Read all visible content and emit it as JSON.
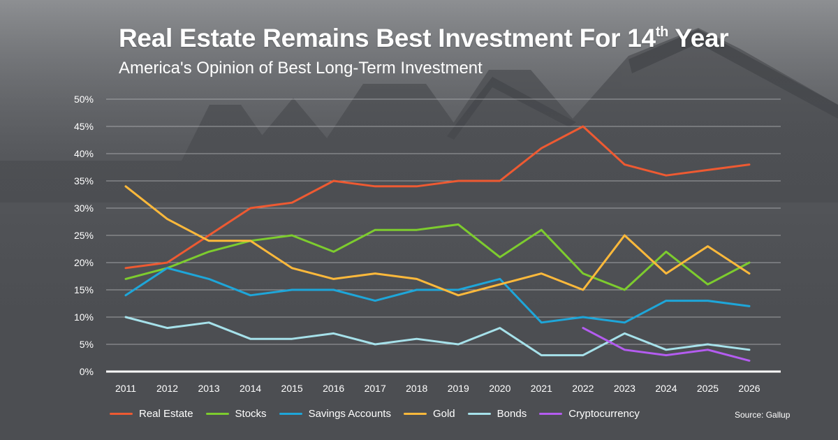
{
  "header": {
    "title_main": "Real Estate Remains Best Investment For 14",
    "title_sup": "th",
    "title_end": " Year",
    "subtitle": "America's Opinion of Best Long-Term Investment"
  },
  "source": "Source: Gallup",
  "chart_data": {
    "type": "line",
    "title": "Real Estate Remains Best Investment For 14th Year",
    "subtitle": "America's Opinion of Best Long-Term Investment",
    "x": [
      "2011",
      "2012",
      "2013",
      "2014",
      "2015",
      "2016",
      "2017",
      "2018",
      "2019",
      "2020",
      "2021",
      "2022",
      "2023",
      "2024",
      "2025",
      "2026"
    ],
    "ylim": [
      0,
      50
    ],
    "y_ticks": [
      "0%",
      "5%",
      "10%",
      "15%",
      "20%",
      "25%",
      "30%",
      "35%",
      "40%",
      "45%",
      "50%"
    ],
    "grid": "horizontal",
    "legend_position": "bottom",
    "series": [
      {
        "name": "Real Estate",
        "color": "#ee5a32",
        "values": [
          19,
          20,
          25,
          30,
          31,
          35,
          34,
          34,
          35,
          35,
          41,
          45,
          38,
          36,
          37,
          38
        ]
      },
      {
        "name": "Stocks",
        "color": "#7dcc2e",
        "values": [
          17,
          19,
          22,
          24,
          25,
          22,
          26,
          26,
          27,
          21,
          26,
          18,
          15,
          22,
          16,
          20
        ]
      },
      {
        "name": "Savings Accounts",
        "color": "#1ea6d9",
        "values": [
          14,
          19,
          17,
          14,
          15,
          15,
          13,
          15,
          15,
          17,
          9,
          10,
          9,
          13,
          13,
          12
        ]
      },
      {
        "name": "Gold",
        "color": "#fdb93b",
        "values": [
          34,
          28,
          24,
          24,
          19,
          17,
          18,
          17,
          14,
          16,
          18,
          15,
          25,
          18,
          23,
          18
        ]
      },
      {
        "name": "Bonds",
        "color": "#a6e1ea",
        "values": [
          10,
          8,
          9,
          6,
          6,
          7,
          5,
          6,
          5,
          8,
          3,
          3,
          7,
          4,
          5,
          4
        ]
      },
      {
        "name": "Cryptocurrency",
        "color": "#b45cf0",
        "values": [
          null,
          null,
          null,
          null,
          null,
          null,
          null,
          null,
          null,
          null,
          null,
          8,
          4,
          3,
          4,
          2
        ]
      }
    ]
  }
}
